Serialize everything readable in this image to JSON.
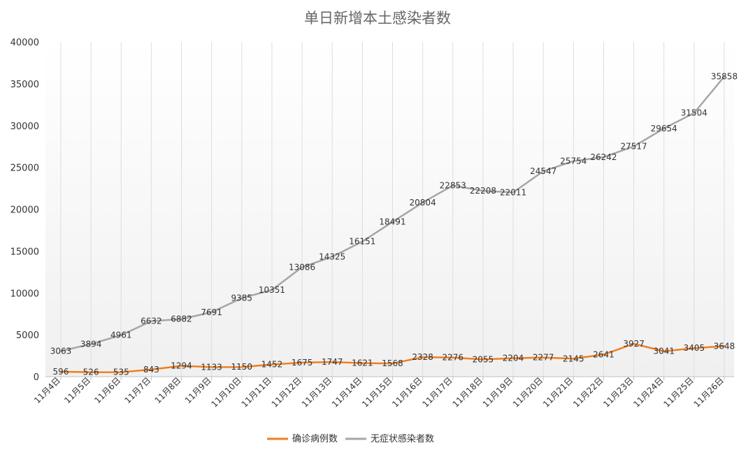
{
  "chart_data": {
    "type": "line",
    "title": "单日新增本土感染者数",
    "xlabel": "",
    "ylabel": "",
    "categories": [
      "11月4日",
      "11月5日",
      "11月6日",
      "11月7日",
      "11月8日",
      "11月9日",
      "11月10日",
      "11月11日",
      "11月12日",
      "11月13日",
      "11月14日",
      "11月15日",
      "11月16日",
      "11月17日",
      "11月18日",
      "11月19日",
      "11月20日",
      "11月21日",
      "11月22日",
      "11月23日",
      "11月24日",
      "11月25日",
      "11月26日"
    ],
    "ylim": [
      0,
      40000
    ],
    "yticks": [
      0,
      5000,
      10000,
      15000,
      20000,
      25000,
      30000,
      35000,
      40000
    ],
    "grid": "vertical",
    "legend_position": "bottom",
    "series": [
      {
        "name": "确诊病例数",
        "color": "#f07f20",
        "values": [
          596,
          526,
          535,
          843,
          1294,
          1133,
          1150,
          1452,
          1675,
          1747,
          1621,
          1568,
          2328,
          2276,
          2055,
          2204,
          2277,
          2145,
          2641,
          3927,
          3041,
          3405,
          3648
        ]
      },
      {
        "name": "无症状感染者数",
        "color": "#a6a6a6",
        "values": [
          3063,
          3894,
          4961,
          6632,
          6882,
          7691,
          9385,
          10351,
          13086,
          14325,
          16151,
          18491,
          20804,
          22853,
          22208,
          22011,
          24547,
          25754,
          26242,
          27517,
          29654,
          31504,
          35858
        ]
      }
    ]
  }
}
